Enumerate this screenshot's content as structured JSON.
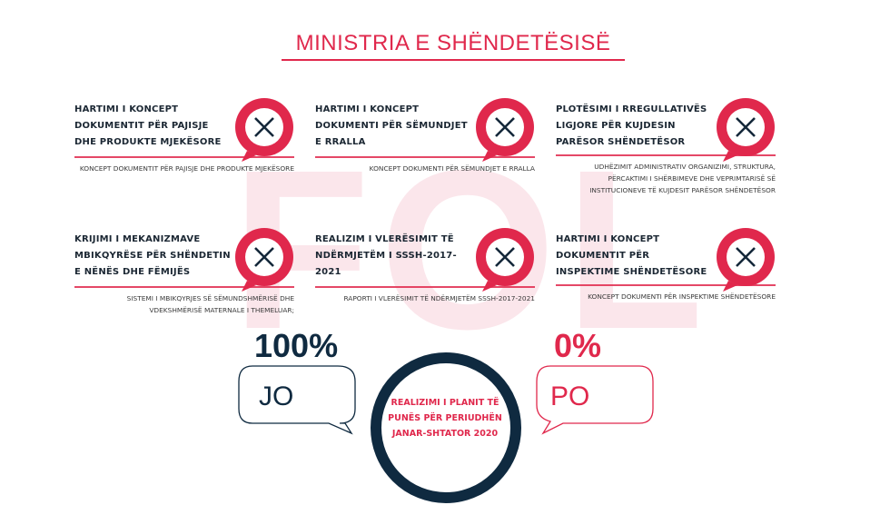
{
  "watermark": "FOL",
  "title": "MINISTRIA E SHËNDETËSISË",
  "colors": {
    "accent": "#e0284c",
    "navy": "#0f2a40",
    "watermark": "#fbe6eb"
  },
  "items": [
    {
      "title": "HARTIMI I KONCEPT DOKUMENTIT PËR PAJISJE DHE PRODUKTE MJEKËSORE",
      "description": "KONCEPT DOKUMENTIT PËR PAJISJE DHE PRODUKTE MJEKËSORE",
      "status_icon": "x-mark-speech-bubble-icon"
    },
    {
      "title": "HARTIMI I KONCEPT DOKUMENTI PËR SËMUNDJET E RRALLA",
      "description": "KONCEPT DOKUMENTI PËR SËMUNDJET E RRALLA",
      "status_icon": "x-mark-speech-bubble-icon"
    },
    {
      "title": "PLOTËSIMI I RREGULLATIVËS LIGJORE PËR KUJDESIN PARËSOR SHËNDETËSOR",
      "description": "UDHËZIMIT ADMINISTRATIV ORGANIZIMI, STRUKTURA, PËRCAKTIMI I SHËRBIMEVE DHE VEPRIMTARISË SË INSTITUCIONEVE TË KUJDESIT PARËSOR SHËNDETËSOR",
      "status_icon": "x-mark-speech-bubble-icon"
    },
    {
      "title": "KRIJIMI I MEKANIZMAVE MBIKQYRËSE PËR SHËNDETIN E NËNËS DHE FËMIJËS",
      "description": "SISTEMI I MBIKQYRJES SË SËMUNDSHMËRISË DHE VDEKSHMËRISË MATERNALE I THEMELUAR;",
      "status_icon": "x-mark-speech-bubble-icon"
    },
    {
      "title": "REALIZIM I VLERËSIMIT TË NDËRMJETËM I SSSH-2017-2021",
      "description": "RAPORTI I VLERËSIMIT TË NDËRMJETËM SSSH-2017-2021",
      "status_icon": "x-mark-speech-bubble-icon"
    },
    {
      "title": "HARTIMI I KONCEPT DOKUMENTIT PËR INSPEKTIME SHËNDETËSORE",
      "description": "KONCEPT DOKUMENTI PËR INSPEKTIME SHËNDETËSORE",
      "status_icon": "x-mark-speech-bubble-icon"
    }
  ],
  "summary": {
    "no": {
      "percent": "100%",
      "label": "JO",
      "value": 100
    },
    "yes": {
      "percent": "0%",
      "label": "PO",
      "value": 0
    },
    "center_text": "REALIZIMI I PLANIT TË PUNËS PËR PERIUDHËN JANAR-SHTATOR 2020"
  }
}
